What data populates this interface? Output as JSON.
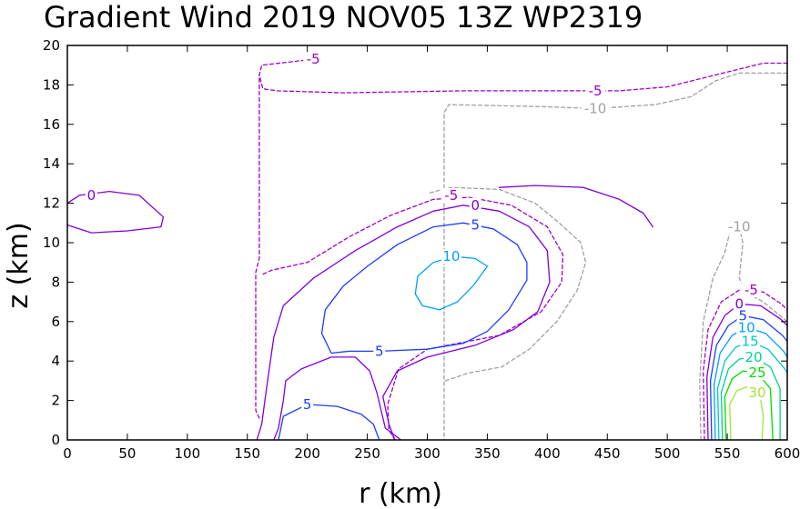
{
  "chart_data": {
    "type": "contour",
    "title": "Gradient Wind 2019 NOV05 13Z   WP2319",
    "xlabel": "r (km)",
    "ylabel": "z (km)",
    "xlim": [
      0,
      600
    ],
    "ylim": [
      0,
      20
    ],
    "xticks": [
      "0",
      "50",
      "100",
      "150",
      "200",
      "250",
      "300",
      "350",
      "400",
      "450",
      "500",
      "550",
      "600"
    ],
    "yticks": [
      "0",
      "2",
      "4",
      "6",
      "8",
      "10",
      "12",
      "14",
      "16",
      "18",
      "20"
    ],
    "levels": [
      {
        "value": -10,
        "color": "#a0a0a0",
        "dashed": true
      },
      {
        "value": -5,
        "color": "#a000c8",
        "dashed": true
      },
      {
        "value": 0,
        "color": "#8200dc",
        "dashed": false
      },
      {
        "value": 5,
        "color": "#1e3cff",
        "dashed": false
      },
      {
        "value": 10,
        "color": "#00a0ff",
        "dashed": false
      },
      {
        "value": 15,
        "color": "#00c8c8",
        "dashed": false
      },
      {
        "value": 20,
        "color": "#00d28c",
        "dashed": false
      },
      {
        "value": 25,
        "color": "#00dc00",
        "dashed": false
      },
      {
        "value": 30,
        "color": "#a0e632",
        "dashed": false
      }
    ],
    "contours": [
      {
        "label": "-5",
        "color": "#a000c8",
        "dashed": true,
        "points": [
          [
            160,
            1.1
          ],
          [
            157,
            1.5
          ],
          [
            157,
            8.5
          ],
          [
            160,
            9.2
          ],
          [
            160,
            18.5
          ],
          [
            162,
            19.0
          ],
          [
            205,
            19.3
          ]
        ]
      },
      {
        "label": "-5",
        "color": "#a000c8",
        "dashed": true,
        "points": [
          [
            600,
            19.1
          ],
          [
            580,
            19.1
          ],
          [
            540,
            18.5
          ],
          [
            500,
            17.9
          ],
          [
            460,
            17.7
          ],
          [
            400,
            17.7
          ],
          [
            330,
            17.7
          ],
          [
            230,
            17.6
          ],
          [
            175,
            17.7
          ],
          [
            163,
            17.8
          ],
          [
            160,
            18.5
          ]
        ]
      },
      {
        "label": "-10",
        "color": "#a0a0a0",
        "dashed": true,
        "points": [
          [
            600,
            18.6
          ],
          [
            560,
            18.6
          ],
          [
            540,
            18.2
          ],
          [
            520,
            17.4
          ],
          [
            490,
            17.0
          ],
          [
            440,
            16.8
          ],
          [
            395,
            16.9
          ],
          [
            318,
            17.0
          ],
          [
            314,
            16.6
          ],
          [
            314,
            0
          ]
        ]
      },
      {
        "label": "-5",
        "color": "#a000c8",
        "dashed": true,
        "points": [
          [
            273,
            0
          ],
          [
            268,
            0.5
          ],
          [
            267,
            1.8
          ],
          [
            276,
            3.6
          ],
          [
            300,
            4.6
          ],
          [
            360,
            5.3
          ],
          [
            395,
            6.5
          ],
          [
            412,
            8.0
          ],
          [
            413,
            9.4
          ],
          [
            400,
            10.8
          ],
          [
            370,
            11.9
          ],
          [
            335,
            12.3
          ],
          [
            305,
            12.2
          ],
          [
            270,
            11.4
          ],
          [
            235,
            10.3
          ],
          [
            200,
            9.0
          ],
          [
            170,
            8.6
          ],
          [
            163,
            8.4
          ]
        ]
      },
      {
        "label": "0",
        "color": "#8200dc",
        "dashed": false,
        "points": [
          [
            278,
            0
          ],
          [
            265,
            0.6
          ],
          [
            258,
            2.4
          ],
          [
            252,
            3.5
          ],
          [
            240,
            4.2
          ],
          [
            220,
            4.2
          ],
          [
            195,
            3.6
          ],
          [
            182,
            3.0
          ],
          [
            180,
            2.0
          ],
          [
            176,
            0.6
          ],
          [
            172,
            0
          ]
        ]
      },
      {
        "label": "0",
        "color": "#8200dc",
        "dashed": false,
        "points": [
          [
            158,
            0
          ],
          [
            162,
            0.8
          ],
          [
            166,
            2.6
          ],
          [
            172,
            5.2
          ],
          [
            180,
            6.8
          ],
          [
            205,
            8.2
          ],
          [
            240,
            9.6
          ],
          [
            275,
            10.8
          ],
          [
            305,
            11.6
          ],
          [
            330,
            11.9
          ],
          [
            360,
            11.6
          ],
          [
            385,
            10.8
          ],
          [
            400,
            9.6
          ],
          [
            402,
            8.0
          ],
          [
            392,
            6.5
          ],
          [
            372,
            5.6
          ],
          [
            340,
            4.8
          ],
          [
            300,
            4.2
          ],
          [
            275,
            3.5
          ],
          [
            263,
            2.2
          ],
          [
            268,
            0.8
          ],
          [
            273,
            0
          ]
        ]
      },
      {
        "label": "5",
        "color": "#1e3cff",
        "dashed": false,
        "points": [
          [
            176,
            0
          ],
          [
            180,
            1.2
          ],
          [
            200,
            1.8
          ],
          [
            225,
            1.7
          ],
          [
            245,
            1.3
          ],
          [
            255,
            0.8
          ],
          [
            260,
            0
          ]
        ]
      },
      {
        "label": "5",
        "color": "#1e3cff",
        "dashed": false,
        "points": [
          [
            220,
            4.4
          ],
          [
            235,
            4.5
          ],
          [
            260,
            4.5
          ],
          [
            300,
            4.6
          ],
          [
            330,
            4.9
          ],
          [
            350,
            5.5
          ],
          [
            368,
            6.6
          ],
          [
            383,
            8.1
          ],
          [
            383,
            9.0
          ],
          [
            375,
            9.9
          ],
          [
            355,
            10.7
          ],
          [
            330,
            11.0
          ],
          [
            305,
            10.8
          ],
          [
            275,
            9.9
          ],
          [
            250,
            8.8
          ],
          [
            230,
            7.8
          ],
          [
            215,
            6.6
          ],
          [
            212,
            5.4
          ],
          [
            220,
            4.4
          ]
        ]
      },
      {
        "label": "10",
        "color": "#00a0ff",
        "dashed": false,
        "points": [
          [
            350,
            8.8
          ],
          [
            340,
            9.2
          ],
          [
            322,
            9.3
          ],
          [
            305,
            9.0
          ],
          [
            292,
            8.3
          ],
          [
            290,
            7.4
          ],
          [
            296,
            6.8
          ],
          [
            310,
            6.6
          ],
          [
            325,
            7.0
          ],
          [
            338,
            7.8
          ],
          [
            350,
            8.8
          ]
        ]
      },
      {
        "label": "-10",
        "color": "#a0a0a0",
        "dashed": true,
        "points": [
          [
            315,
            3.0
          ],
          [
            335,
            3.4
          ],
          [
            362,
            3.7
          ],
          [
            385,
            4.6
          ],
          [
            408,
            6.0
          ],
          [
            425,
            7.6
          ],
          [
            432,
            9.0
          ],
          [
            428,
            10.0
          ],
          [
            410,
            11.0
          ],
          [
            390,
            12.0
          ],
          [
            360,
            12.7
          ],
          [
            320,
            12.8
          ],
          [
            300,
            12.5
          ]
        ]
      },
      {
        "label": "-10",
        "color": "#a0a0a0",
        "dashed": true,
        "points": [
          [
            528,
            0
          ],
          [
            527,
            3.0
          ],
          [
            530,
            6.0
          ],
          [
            538,
            8.2
          ],
          [
            548,
            9.5
          ],
          [
            552,
            10.5
          ],
          [
            555,
            11.0
          ],
          [
            560,
            10.8
          ],
          [
            563,
            10.0
          ],
          [
            560,
            8.2
          ],
          [
            565,
            7.5
          ],
          [
            580,
            7.0
          ],
          [
            600,
            6.0
          ]
        ]
      },
      {
        "label": "0",
        "color": "#8200dc",
        "dashed": false,
        "points": [
          [
            488,
            10.8
          ],
          [
            480,
            11.5
          ],
          [
            460,
            12.2
          ],
          [
            430,
            12.8
          ],
          [
            390,
            12.9
          ],
          [
            360,
            12.8
          ]
        ]
      },
      {
        "label": "0",
        "color": "#8200dc",
        "dashed": false,
        "points": [
          [
            0,
            12.0
          ],
          [
            10,
            12.4
          ],
          [
            35,
            12.6
          ],
          [
            60,
            12.4
          ],
          [
            80,
            11.3
          ],
          [
            78,
            10.8
          ],
          [
            50,
            10.6
          ],
          [
            20,
            10.5
          ],
          [
            0,
            10.9
          ]
        ]
      },
      {
        "label": "-5",
        "color": "#a000c8",
        "dashed": true,
        "points": [
          [
            531,
            0
          ],
          [
            530,
            3.5
          ],
          [
            534,
            5.6
          ],
          [
            545,
            7.0
          ],
          [
            560,
            7.6
          ],
          [
            580,
            7.5
          ],
          [
            595,
            6.9
          ],
          [
            600,
            6.6
          ]
        ]
      },
      {
        "label": "0",
        "color": "#8200dc",
        "dashed": false,
        "points": [
          [
            534,
            0
          ],
          [
            533,
            3.2
          ],
          [
            538,
            5.2
          ],
          [
            548,
            6.3
          ],
          [
            560,
            6.9
          ],
          [
            578,
            6.8
          ],
          [
            595,
            6.1
          ],
          [
            600,
            5.8
          ]
        ]
      },
      {
        "label": "5",
        "color": "#1e3cff",
        "dashed": false,
        "points": [
          [
            537,
            0
          ],
          [
            536,
            3.0
          ],
          [
            541,
            4.8
          ],
          [
            551,
            5.8
          ],
          [
            563,
            6.3
          ],
          [
            580,
            6.1
          ],
          [
            596,
            5.3
          ],
          [
            600,
            5.0
          ]
        ]
      },
      {
        "label": "10",
        "color": "#00a0ff",
        "dashed": false,
        "points": [
          [
            540,
            0
          ],
          [
            539,
            2.8
          ],
          [
            544,
            4.4
          ],
          [
            554,
            5.3
          ],
          [
            566,
            5.7
          ],
          [
            582,
            5.4
          ],
          [
            597,
            4.5
          ],
          [
            600,
            4.2
          ]
        ]
      },
      {
        "label": "15",
        "color": "#00c8c8",
        "dashed": false,
        "points": [
          [
            543,
            0
          ],
          [
            542,
            2.6
          ],
          [
            548,
            4.0
          ],
          [
            557,
            4.7
          ],
          [
            569,
            5.0
          ],
          [
            584,
            4.6
          ],
          [
            598,
            3.6
          ],
          [
            600,
            3.4
          ]
        ]
      },
      {
        "label": "20",
        "color": "#00d28c",
        "dashed": false,
        "points": [
          [
            546,
            0
          ],
          [
            545,
            2.4
          ],
          [
            551,
            3.6
          ],
          [
            560,
            4.1
          ],
          [
            572,
            4.2
          ],
          [
            586,
            3.7
          ],
          [
            594,
            2.6
          ],
          [
            594,
            0
          ]
        ]
      },
      {
        "label": "25",
        "color": "#00dc00",
        "dashed": false,
        "points": [
          [
            549,
            0
          ],
          [
            548,
            2.2
          ],
          [
            554,
            3.1
          ],
          [
            563,
            3.5
          ],
          [
            575,
            3.4
          ],
          [
            586,
            2.6
          ],
          [
            588,
            0
          ]
        ]
      },
      {
        "label": "30",
        "color": "#a0e632",
        "dashed": false,
        "points": [
          [
            553,
            0
          ],
          [
            552,
            1.8
          ],
          [
            558,
            2.5
          ],
          [
            567,
            2.7
          ],
          [
            577,
            2.4
          ],
          [
            580,
            1.2
          ],
          [
            579,
            0
          ]
        ]
      }
    ],
    "contour_labels": [
      {
        "text": "-5",
        "x": 205,
        "y": 19.3,
        "color": "#a000c8"
      },
      {
        "text": "-5",
        "x": 440,
        "y": 17.7,
        "color": "#a000c8"
      },
      {
        "text": "-10",
        "x": 440,
        "y": 16.8,
        "color": "#a0a0a0"
      },
      {
        "text": "-5",
        "x": 320,
        "y": 12.4,
        "color": "#a000c8"
      },
      {
        "text": "0",
        "x": 340,
        "y": 11.9,
        "color": "#8200dc"
      },
      {
        "text": "5",
        "x": 340,
        "y": 10.9,
        "color": "#1e3cff"
      },
      {
        "text": "10",
        "x": 320,
        "y": 9.3,
        "color": "#00a0ff"
      },
      {
        "text": "5",
        "x": 260,
        "y": 4.5,
        "color": "#1e3cff"
      },
      {
        "text": "5",
        "x": 200,
        "y": 1.8,
        "color": "#1e3cff"
      },
      {
        "text": "0",
        "x": 20,
        "y": 12.4,
        "color": "#8200dc"
      },
      {
        "text": "-10",
        "x": 560,
        "y": 10.8,
        "color": "#a0a0a0"
      },
      {
        "text": "-5",
        "x": 570,
        "y": 7.6,
        "color": "#a000c8"
      },
      {
        "text": "0",
        "x": 560,
        "y": 6.9,
        "color": "#8200dc"
      },
      {
        "text": "5",
        "x": 563,
        "y": 6.3,
        "color": "#1e3cff"
      },
      {
        "text": "10",
        "x": 566,
        "y": 5.7,
        "color": "#00a0ff"
      },
      {
        "text": "15",
        "x": 569,
        "y": 5.0,
        "color": "#00c8c8"
      },
      {
        "text": "20",
        "x": 572,
        "y": 4.2,
        "color": "#00d28c"
      },
      {
        "text": "25",
        "x": 575,
        "y": 3.4,
        "color": "#00dc00"
      },
      {
        "text": "30",
        "x": 575,
        "y": 2.4,
        "color": "#a0e632"
      }
    ]
  }
}
